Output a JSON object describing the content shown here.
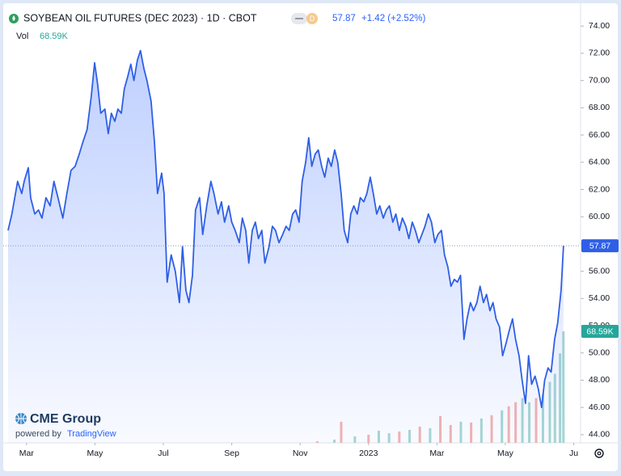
{
  "chart_data": {
    "type": "line",
    "title": "SOYBEAN OIL FUTURES (DEC 2023) · 1D · CBOT",
    "badge": "D",
    "change": "+1.42 (+2.52%)",
    "logo": {
      "brand": "CME Group",
      "powered_by": "powered by",
      "provider": "TradingView"
    },
    "xlim": [
      -0.54,
      16.2
    ],
    "xticks": [
      {
        "value": 0,
        "label": "Mar"
      },
      {
        "value": 2,
        "label": "May"
      },
      {
        "value": 4,
        "label": "Jul"
      },
      {
        "value": 6,
        "label": "Sep"
      },
      {
        "value": 8,
        "label": "Nov"
      },
      {
        "value": 10,
        "label": "2023"
      },
      {
        "value": 12,
        "label": "Mar"
      },
      {
        "value": 14,
        "label": "May"
      },
      {
        "value": 16,
        "label": "Ju"
      }
    ],
    "ylim": [
      43.4,
      75.2
    ],
    "yticks": [
      {
        "value": 44,
        "label": "44.00"
      },
      {
        "value": 46,
        "label": "46.00"
      },
      {
        "value": 48,
        "label": "48.00"
      },
      {
        "value": 50,
        "label": "50.00"
      },
      {
        "value": 52,
        "label": "52.00"
      },
      {
        "value": 54,
        "label": "54.00"
      },
      {
        "value": 56,
        "label": "56.00"
      },
      {
        "value": 58,
        "label": "58.00"
      },
      {
        "value": 60,
        "label": "60.00"
      },
      {
        "value": 62,
        "label": "62.00"
      },
      {
        "value": 64,
        "label": "64.00"
      },
      {
        "value": 66,
        "label": "66.00"
      },
      {
        "value": 68,
        "label": "68.00"
      },
      {
        "value": 70,
        "label": "70.00"
      },
      {
        "value": 72,
        "label": "72.00"
      },
      {
        "value": 74,
        "label": "74.00"
      }
    ],
    "grid": false,
    "series": [
      {
        "color": "#2f5fe6",
        "x": [
          -0.54,
          -0.43,
          -0.26,
          -0.14,
          -0.07,
          0.05,
          0.12,
          0.24,
          0.35,
          0.45,
          0.57,
          0.69,
          0.8,
          0.92,
          1.06,
          1.18,
          1.3,
          1.42,
          1.54,
          1.65,
          1.77,
          1.89,
          1.99,
          2.08,
          2.17,
          2.29,
          2.39,
          2.48,
          2.58,
          2.67,
          2.77,
          2.86,
          2.96,
          3.05,
          3.14,
          3.24,
          3.33,
          3.43,
          3.52,
          3.64,
          3.74,
          3.83,
          3.95,
          4.02,
          4.11,
          4.23,
          4.35,
          4.47,
          4.56,
          4.66,
          4.75,
          4.85,
          4.94,
          5.06,
          5.15,
          5.27,
          5.39,
          5.48,
          5.6,
          5.7,
          5.79,
          5.91,
          6.0,
          6.1,
          6.22,
          6.31,
          6.41,
          6.5,
          6.6,
          6.69,
          6.78,
          6.88,
          6.97,
          7.09,
          7.19,
          7.28,
          7.38,
          7.49,
          7.59,
          7.68,
          7.78,
          7.87,
          7.97,
          8.06,
          8.16,
          8.25,
          8.34,
          8.44,
          8.53,
          8.63,
          8.72,
          8.82,
          8.91,
          9.01,
          9.1,
          9.2,
          9.29,
          9.39,
          9.48,
          9.57,
          9.67,
          9.76,
          9.86,
          9.95,
          10.05,
          10.14,
          10.24,
          10.33,
          10.43,
          10.52,
          10.61,
          10.71,
          10.8,
          10.9,
          10.99,
          11.09,
          11.18,
          11.28,
          11.37,
          11.47,
          11.56,
          11.65,
          11.75,
          11.84,
          11.94,
          12.03,
          12.13,
          12.22,
          12.32,
          12.41,
          12.51,
          12.6,
          12.69,
          12.79,
          12.88,
          12.98,
          13.07,
          13.17,
          13.26,
          13.36,
          13.45,
          13.55,
          13.64,
          13.73,
          13.83,
          13.92,
          14.02,
          14.11,
          14.21,
          14.3,
          14.4,
          14.49,
          14.59,
          14.68,
          14.77,
          14.87,
          14.96,
          15.06,
          15.15,
          15.25,
          15.34,
          15.44,
          15.53,
          15.63,
          15.7
        ],
        "values": [
          59.0,
          60.2,
          62.6,
          61.7,
          62.6,
          63.6,
          61.4,
          60.2,
          60.5,
          59.9,
          61.4,
          60.8,
          62.6,
          61.4,
          59.9,
          61.7,
          63.4,
          63.7,
          64.6,
          65.5,
          66.4,
          68.8,
          71.3,
          69.7,
          67.6,
          67.9,
          66.1,
          67.6,
          67.0,
          67.9,
          67.6,
          69.4,
          70.3,
          71.2,
          70.0,
          71.5,
          72.2,
          70.9,
          70.0,
          68.5,
          65.5,
          61.7,
          63.2,
          61.7,
          55.2,
          57.2,
          56.0,
          53.7,
          57.8,
          54.6,
          53.7,
          55.7,
          60.5,
          61.4,
          58.7,
          60.8,
          62.6,
          61.7,
          60.2,
          61.1,
          59.6,
          60.8,
          59.6,
          59.0,
          58.1,
          59.9,
          59.0,
          56.6,
          59.0,
          59.6,
          58.4,
          59.0,
          56.6,
          57.8,
          59.3,
          59.0,
          58.1,
          58.7,
          59.3,
          59.0,
          60.2,
          60.5,
          59.6,
          62.6,
          64.0,
          65.8,
          63.7,
          64.6,
          64.9,
          63.7,
          62.9,
          64.3,
          63.7,
          64.9,
          64.0,
          61.7,
          59.0,
          58.1,
          60.2,
          60.8,
          60.2,
          61.4,
          61.1,
          61.7,
          62.9,
          61.7,
          60.2,
          60.8,
          59.9,
          60.5,
          60.8,
          59.6,
          60.2,
          59.0,
          59.9,
          59.3,
          58.4,
          59.6,
          59.0,
          58.1,
          58.7,
          59.3,
          60.2,
          59.6,
          58.1,
          58.7,
          59.0,
          57.2,
          56.3,
          54.9,
          55.4,
          55.2,
          55.7,
          51.0,
          52.5,
          53.7,
          53.1,
          53.7,
          54.9,
          53.7,
          54.3,
          53.1,
          53.7,
          52.5,
          51.9,
          49.8,
          50.7,
          51.6,
          52.5,
          51.0,
          49.8,
          48.0,
          46.3,
          49.8,
          47.7,
          48.3,
          47.4,
          46.0,
          48.0,
          48.9,
          48.6,
          51.0,
          52.2,
          54.6,
          57.87
        ]
      }
    ],
    "volume": {
      "name": "Vol",
      "vlim": [
        0,
        266400
      ],
      "x": [
        8.5,
        9.0,
        9.2,
        9.6,
        10.0,
        10.3,
        10.6,
        10.9,
        11.2,
        11.5,
        11.8,
        12.1,
        12.4,
        12.7,
        13.0,
        13.3,
        13.6,
        13.9,
        14.1,
        14.3,
        14.5,
        14.7,
        14.9,
        15.1,
        15.3,
        15.45,
        15.6,
        15.7
      ],
      "values": [
        1000,
        2000,
        13000,
        4000,
        5000,
        7500,
        6000,
        7000,
        8000,
        10000,
        9000,
        16500,
        11000,
        13000,
        12500,
        15000,
        17000,
        20000,
        22500,
        25000,
        27500,
        25000,
        27500,
        30000,
        37500,
        42500,
        55000,
        68590
      ],
      "value_labels": [
        null,
        null,
        null,
        null,
        null,
        null,
        null,
        null,
        null,
        null,
        null,
        null,
        null,
        null,
        null,
        null,
        null,
        null,
        null,
        null,
        null,
        null,
        null,
        null,
        null,
        null,
        null,
        "68.59K"
      ],
      "colors": [
        "#f5b4b0",
        "#a8d8d1",
        "#f5b4b0",
        "#a8d8d1",
        "#f5b4b0",
        "#a8d8d1",
        "#a8d8d1",
        "#f5b4b0",
        "#a8d8d1",
        "#f5b4b0",
        "#a8d8d1",
        "#f5b4b0",
        "#f5b4b0",
        "#a8d8d1",
        "#f5b4b0",
        "#a8d8d1",
        "#f5b4b0",
        "#a8d8d1",
        "#f5b4b0",
        "#f5b4b0",
        "#a8d8d1",
        "#a8d8d1",
        "#f5b4b0",
        "#a8d8d1",
        "#a8d8d1",
        "#a8d8d1",
        "#a8d8d1",
        "#a8d8d1"
      ]
    }
  }
}
